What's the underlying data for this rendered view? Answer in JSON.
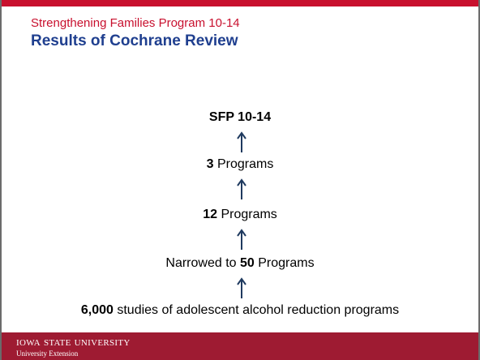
{
  "header": {
    "subtitle": "Strengthening Families Program 10-14",
    "title": "Results of Cochrane Review"
  },
  "steps": [
    [
      {
        "text": "SFP 10-14",
        "bold": true
      }
    ],
    [
      {
        "text": "3",
        "bold": true
      },
      {
        "text": "Programs",
        "bold": false
      }
    ],
    [
      {
        "text": "12",
        "bold": true
      },
      {
        "text": "Programs",
        "bold": false
      }
    ],
    [
      {
        "text": "Narrowed to",
        "bold": false
      },
      {
        "text": "50",
        "bold": true
      },
      {
        "text": "Programs",
        "bold": false
      }
    ],
    [
      {
        "text": "6,000",
        "bold": true
      },
      {
        "text": "studies of adolescent alcohol reduction programs",
        "bold": false
      }
    ]
  ],
  "footer": {
    "university": "Iowa State University",
    "unit": "University Extension"
  }
}
